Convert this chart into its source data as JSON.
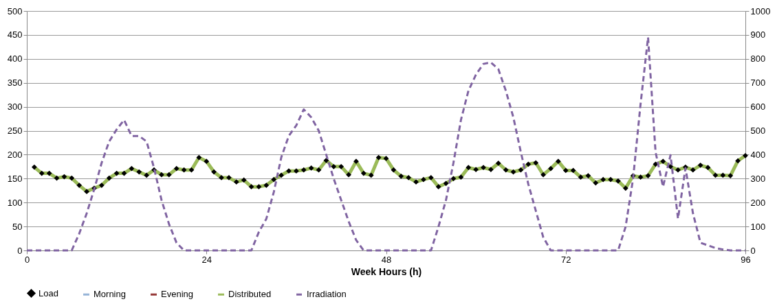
{
  "chart_data": {
    "type": "line",
    "xlabel": "Week Hours (h)",
    "xlim": [
      0,
      96
    ],
    "xticks": [
      0,
      24,
      48,
      72,
      96
    ],
    "ylim": [
      0,
      500
    ],
    "yticks": [
      0,
      50,
      100,
      150,
      200,
      250,
      300,
      350,
      400,
      450,
      500
    ],
    "y2lim": [
      0,
      1000
    ],
    "y2ticks": [
      0,
      100,
      200,
      300,
      400,
      500,
      600,
      700,
      800,
      900,
      {
        "value": 1000,
        "label": "1000"
      }
    ],
    "grid": "y",
    "legend": "bottom",
    "series": [
      {
        "name": "Load",
        "type": "scatter",
        "marker": "diamond",
        "color": "#000000",
        "x": [
          1,
          2,
          3,
          4,
          5,
          6,
          7,
          8,
          9,
          10,
          11,
          12,
          13,
          14,
          15,
          16,
          17,
          18,
          19,
          20,
          21,
          22,
          23,
          24,
          25,
          26,
          27,
          28,
          29,
          30,
          31,
          32,
          33,
          34,
          35,
          36,
          37,
          38,
          39,
          40,
          41,
          42,
          43,
          44,
          45,
          46,
          47,
          48,
          49,
          50,
          51,
          52,
          53,
          54,
          55,
          56,
          57,
          58,
          59,
          60,
          61,
          62,
          63,
          64,
          65,
          66,
          67,
          68,
          69,
          70,
          71,
          72,
          73,
          74,
          75,
          76,
          77,
          78,
          79,
          80,
          81,
          82,
          83,
          84,
          85,
          86,
          87,
          88,
          89,
          90,
          91,
          92,
          93,
          94,
          95,
          96
        ],
        "values": [
          174,
          161,
          161,
          151,
          154,
          151,
          136,
          123,
          130,
          136,
          151,
          161,
          161,
          171,
          164,
          157,
          168,
          158,
          158,
          171,
          168,
          168,
          194,
          186,
          164,
          152,
          152,
          143,
          147,
          133,
          133,
          136,
          148,
          157,
          166,
          166,
          168,
          172,
          168,
          188,
          175,
          175,
          158,
          186,
          161,
          157,
          194,
          192,
          168,
          155,
          152,
          143,
          148,
          152,
          133,
          140,
          150,
          153,
          173,
          169,
          173,
          169,
          182,
          168,
          164,
          168,
          180,
          183,
          158,
          171,
          186,
          167,
          167,
          153,
          156,
          141,
          148,
          148,
          145,
          130,
          156,
          153,
          156,
          180,
          186,
          175,
          168,
          174,
          168,
          178,
          173,
          157,
          157,
          156,
          187,
          198
        ]
      },
      {
        "name": "Morning",
        "color": "#95b3d7"
      },
      {
        "name": "Evening",
        "color": "#953735"
      },
      {
        "name": "Distributed",
        "color": "#9bbb59",
        "x": [
          1,
          2,
          3,
          4,
          5,
          6,
          7,
          8,
          9,
          10,
          11,
          12,
          13,
          14,
          15,
          16,
          17,
          18,
          19,
          20,
          21,
          22,
          23,
          24,
          25,
          26,
          27,
          28,
          29,
          30,
          31,
          32,
          33,
          34,
          35,
          36,
          37,
          38,
          39,
          40,
          41,
          42,
          43,
          44,
          45,
          46,
          47,
          48,
          49,
          50,
          51,
          52,
          53,
          54,
          55,
          56,
          57,
          58,
          59,
          60,
          61,
          62,
          63,
          64,
          65,
          66,
          67,
          68,
          69,
          70,
          71,
          72,
          73,
          74,
          75,
          76,
          77,
          78,
          79,
          80,
          81,
          82,
          83,
          84,
          85,
          86,
          87,
          88,
          89,
          90,
          91,
          92,
          93,
          94,
          95,
          96
        ],
        "values": [
          174,
          161,
          161,
          151,
          154,
          151,
          136,
          123,
          130,
          136,
          151,
          161,
          161,
          171,
          164,
          157,
          168,
          158,
          158,
          171,
          168,
          168,
          194,
          186,
          164,
          152,
          152,
          143,
          147,
          133,
          133,
          136,
          148,
          157,
          166,
          166,
          168,
          172,
          168,
          188,
          175,
          175,
          158,
          186,
          161,
          157,
          194,
          192,
          168,
          155,
          152,
          143,
          148,
          152,
          133,
          140,
          150,
          153,
          173,
          169,
          173,
          169,
          182,
          168,
          164,
          168,
          180,
          183,
          158,
          171,
          186,
          167,
          167,
          153,
          156,
          141,
          148,
          148,
          145,
          130,
          156,
          153,
          156,
          180,
          186,
          175,
          168,
          174,
          168,
          178,
          173,
          157,
          157,
          156,
          187,
          198
        ]
      },
      {
        "name": "Irradiation",
        "type": "line",
        "line_style": "dashed",
        "axis": "y2",
        "color": "#8064a2",
        "x": [
          0,
          1,
          2,
          3,
          4,
          5,
          6,
          7,
          8,
          9,
          10,
          11,
          12,
          13,
          14,
          15,
          16,
          17,
          18,
          19,
          20,
          21,
          22,
          23,
          24,
          25,
          26,
          27,
          28,
          29,
          30,
          31,
          32,
          33,
          34,
          35,
          36,
          37,
          38,
          39,
          40,
          41,
          42,
          43,
          44,
          45,
          46,
          47,
          48,
          49,
          50,
          51,
          52,
          53,
          54,
          55,
          56,
          57,
          58,
          59,
          60,
          61,
          62,
          63,
          64,
          65,
          66,
          67,
          68,
          69,
          70,
          71,
          72,
          73,
          74,
          75,
          76,
          77,
          78,
          79,
          80,
          81,
          82,
          83,
          84,
          85,
          86,
          87,
          88,
          89,
          90,
          91,
          92,
          93,
          94,
          95,
          96
        ],
        "values": [
          0,
          0,
          0,
          0,
          0,
          0,
          0,
          70,
          155,
          255,
          366,
          455,
          505,
          545,
          478,
          478,
          455,
          344,
          210,
          110,
          32,
          0,
          0,
          0,
          0,
          0,
          0,
          0,
          0,
          0,
          0,
          77,
          132,
          244,
          389,
          478,
          522,
          589,
          556,
          500,
          400,
          300,
          210,
          121,
          43,
          0,
          0,
          0,
          0,
          0,
          0,
          0,
          0,
          0,
          0,
          99,
          210,
          366,
          545,
          667,
          734,
          779,
          785,
          757,
          667,
          556,
          411,
          277,
          166,
          55,
          0,
          0,
          0,
          0,
          0,
          0,
          0,
          0,
          0,
          0,
          99,
          300,
          612,
          890,
          411,
          266,
          398,
          133,
          344,
          155,
          32,
          21,
          10,
          4,
          0,
          0,
          0
        ]
      }
    ]
  }
}
